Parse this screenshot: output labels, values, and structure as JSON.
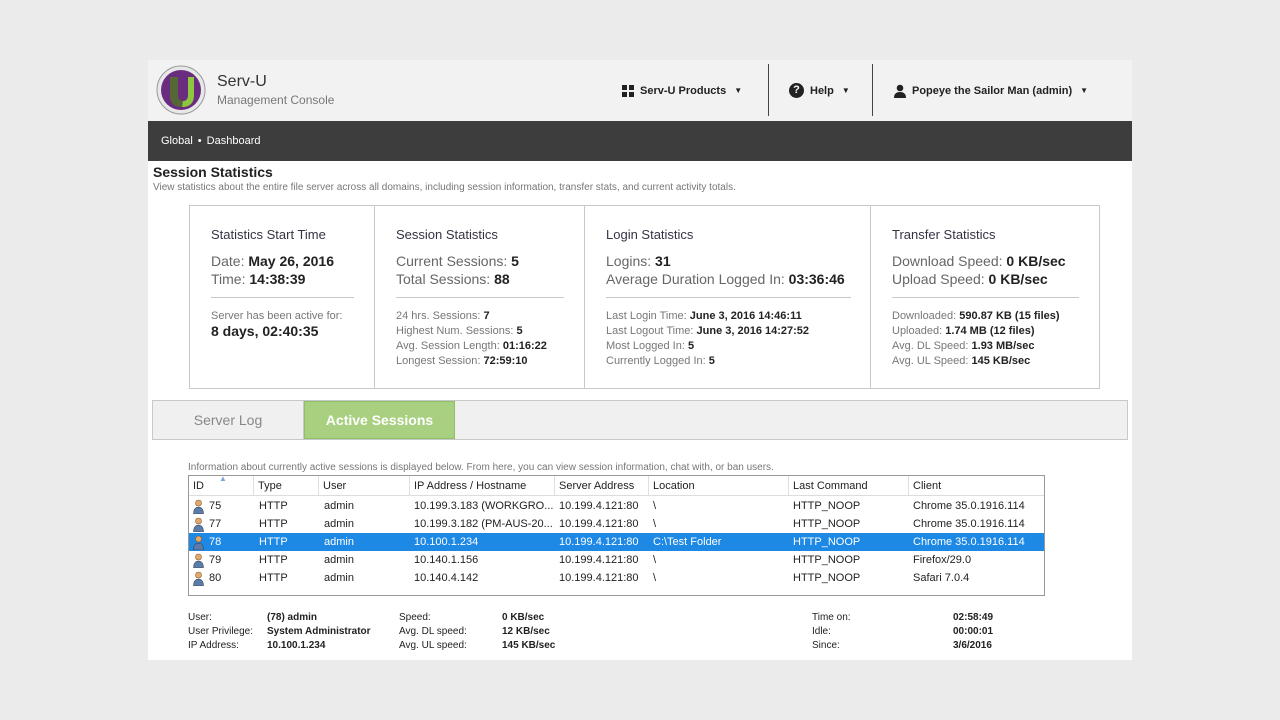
{
  "header": {
    "app_title": "Serv-U",
    "app_subtitle": "Management Console",
    "products_label": "Serv-U Products",
    "help_label": "Help",
    "user_label": "Popeye the Sailor Man (admin)"
  },
  "breadcrumb": {
    "items": [
      "Global",
      "Dashboard"
    ],
    "separator": "•"
  },
  "page": {
    "title": "Session Statistics",
    "description": "View statistics about the entire file server across all domains, including session information, transfer stats, and current activity totals."
  },
  "stats": {
    "start": {
      "title": "Statistics Start Time",
      "date_label": "Date:",
      "date_value": "May 26, 2016",
      "time_label": "Time:",
      "time_value": "14:38:39",
      "active_label": "Server has been active for:",
      "active_value": "8 days, 02:40:35"
    },
    "session": {
      "title": "Session Statistics",
      "current_label": "Current Sessions:",
      "current_value": "5",
      "total_label": "Total Sessions:",
      "total_value": "88",
      "details": [
        {
          "label": "24 hrs. Sessions:",
          "value": "7"
        },
        {
          "label": "Highest Num. Sessions:",
          "value": "5"
        },
        {
          "label": "Avg. Session Length:",
          "value": "01:16:22"
        },
        {
          "label": "Longest Session:",
          "value": "72:59:10"
        }
      ]
    },
    "login": {
      "title": "Login Statistics",
      "logins_label": "Logins:",
      "logins_value": "31",
      "avg_label": "Average Duration Logged In:",
      "avg_value": "03:36:46",
      "details": [
        {
          "label": "Last Login Time:",
          "value": "June 3, 2016 14:46:11"
        },
        {
          "label": "Last Logout Time:",
          "value": "June 3, 2016 14:27:52"
        },
        {
          "label": "Most Logged In:",
          "value": "5"
        },
        {
          "label": "Currently Logged In:",
          "value": "5"
        }
      ]
    },
    "transfer": {
      "title": "Transfer Statistics",
      "dl_label": "Download Speed:",
      "dl_value": "0 KB/sec",
      "ul_label": "Upload Speed:",
      "ul_value": "0 KB/sec",
      "details": [
        {
          "label": "Downloaded:",
          "value": "590.87 KB (15 files)"
        },
        {
          "label": "Uploaded:",
          "value": "1.74 MB (12 files)"
        },
        {
          "label": "Avg. DL Speed:",
          "value": "1.93 MB/sec"
        },
        {
          "label": "Avg. UL Speed:",
          "value": "145 KB/sec"
        }
      ]
    }
  },
  "tabs": [
    {
      "label": "Server Log",
      "active": false
    },
    {
      "label": "Active Sessions",
      "active": true
    }
  ],
  "sessions": {
    "info": "Information about currently active sessions is displayed below. From here, you can view session information, chat with, or ban users.",
    "columns": [
      "ID",
      "Type",
      "User",
      "IP Address / Hostname",
      "Server Address",
      "Location",
      "Last Command",
      "Client"
    ],
    "rows": [
      {
        "id": "75",
        "type": "HTTP",
        "user": "admin",
        "ip": "10.199.3.183 (WORKGRO...",
        "server": "10.199.4.121:80",
        "location": "\\",
        "command": "HTTP_NOOP",
        "client": "Chrome 35.0.1916.114",
        "selected": false
      },
      {
        "id": "77",
        "type": "HTTP",
        "user": "admin",
        "ip": "10.199.3.182 (PM-AUS-20...",
        "server": "10.199.4.121:80",
        "location": "\\",
        "command": "HTTP_NOOP",
        "client": "Chrome 35.0.1916.114",
        "selected": false
      },
      {
        "id": "78",
        "type": "HTTP",
        "user": "admin",
        "ip": "10.100.1.234",
        "server": "10.199.4.121:80",
        "location": "C:\\Test Folder",
        "command": "HTTP_NOOP",
        "client": "Chrome 35.0.1916.114",
        "selected": true
      },
      {
        "id": "79",
        "type": "HTTP",
        "user": "admin",
        "ip": "10.140.1.156",
        "server": "10.199.4.121:80",
        "location": "\\",
        "command": "HTTP_NOOP",
        "client": "Firefox/29.0",
        "selected": false
      },
      {
        "id": "80",
        "type": "HTTP",
        "user": "admin",
        "ip": "10.140.4.142",
        "server": "10.199.4.121:80",
        "location": "\\",
        "command": "HTTP_NOOP",
        "client": "Safari 7.0.4",
        "selected": false
      }
    ]
  },
  "details": {
    "user_label": "User:",
    "user_value": "(78) admin",
    "priv_label": "User Privilege:",
    "priv_value": "System Administrator",
    "ip_label": "IP Address:",
    "ip_value": "10.100.1.234",
    "speed_label": "Speed:",
    "speed_value": "0 KB/sec",
    "avgdl_label": "Avg. DL speed:",
    "avgdl_value": "12 KB/sec",
    "avgul_label": "Avg. UL speed:",
    "avgul_value": "145 KB/sec",
    "timeon_label": "Time on:",
    "timeon_value": "02:58:49",
    "idle_label": "Idle:",
    "idle_value": "00:00:01",
    "since_label": "Since:",
    "since_value": "3/6/2016"
  },
  "colors": {
    "accent_tab": "#a8d080",
    "selected_row": "#1e88e5",
    "breadcrumb_bar": "#3d3d3d",
    "logo_purple": "#6a2c7e",
    "logo_green": "#8dc63f"
  },
  "icons": [
    "serv-u-logo",
    "grid-icon",
    "help-icon",
    "user-icon",
    "caret-down-icon",
    "session-user-icon",
    "sort-asc-icon"
  ]
}
